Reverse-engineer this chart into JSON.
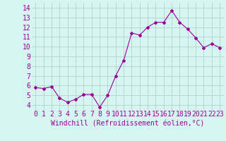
{
  "x": [
    0,
    1,
    2,
    3,
    4,
    5,
    6,
    7,
    8,
    9,
    10,
    11,
    12,
    13,
    14,
    15,
    16,
    17,
    18,
    19,
    20,
    21,
    22,
    23
  ],
  "y": [
    5.8,
    5.7,
    5.9,
    4.7,
    4.3,
    4.6,
    5.1,
    5.1,
    3.8,
    5.0,
    7.0,
    8.6,
    11.4,
    11.2,
    12.0,
    12.5,
    12.5,
    13.7,
    12.5,
    11.8,
    10.9,
    9.9,
    10.3,
    9.9
  ],
  "line_color": "#990099",
  "marker": "D",
  "marker_size": 2,
  "background_color": "#d5f5f0",
  "grid_color": "#b0c8c8",
  "xlabel": "Windchill (Refroidissement éolien,°C)",
  "xlabel_fontsize": 7,
  "tick_color": "#990099",
  "tick_fontsize": 7,
  "ylim": [
    3.5,
    14.5
  ],
  "yticks": [
    4,
    5,
    6,
    7,
    8,
    9,
    10,
    11,
    12,
    13,
    14
  ],
  "xticks": [
    0,
    1,
    2,
    3,
    4,
    5,
    6,
    7,
    8,
    9,
    10,
    11,
    12,
    13,
    14,
    15,
    16,
    17,
    18,
    19,
    20,
    21,
    22,
    23
  ]
}
